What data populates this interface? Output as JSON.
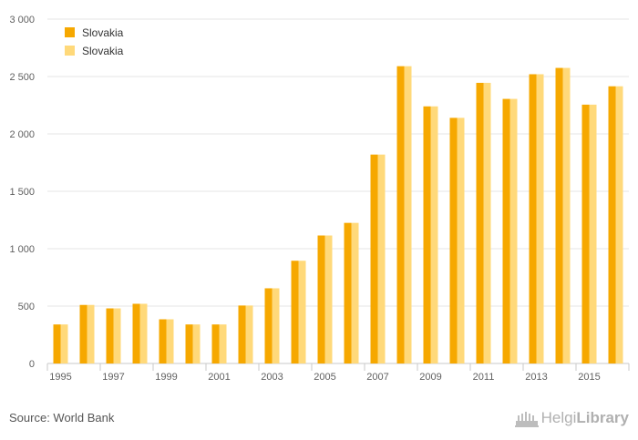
{
  "chart_data": {
    "type": "bar",
    "categories": [
      "1995",
      "1996",
      "1997",
      "1998",
      "1999",
      "2000",
      "2001",
      "2002",
      "2003",
      "2004",
      "2005",
      "2006",
      "2007",
      "2008",
      "2009",
      "2010",
      "2011",
      "2012",
      "2013",
      "2014",
      "2015",
      "2016"
    ],
    "x_tick_labels": [
      "1995",
      "1997",
      "1999",
      "2001",
      "2003",
      "2005",
      "2007",
      "2009",
      "2011",
      "2013",
      "2015"
    ],
    "series": [
      {
        "name": "Slovakia",
        "color": "#f6a800",
        "values": [
          340,
          510,
          480,
          520,
          385,
          340,
          340,
          505,
          655,
          895,
          1115,
          1225,
          1820,
          2590,
          2240,
          2140,
          2445,
          2305,
          2520,
          2575,
          2255,
          2415
        ]
      },
      {
        "name": "Slovakia",
        "color": "#ffd97a",
        "values": [
          340,
          510,
          480,
          520,
          385,
          340,
          340,
          505,
          655,
          895,
          1115,
          1225,
          1820,
          2590,
          2240,
          2140,
          2445,
          2305,
          2520,
          2575,
          2255,
          2415
        ]
      }
    ],
    "ylim": [
      0,
      3000
    ],
    "y_ticks": [
      0,
      500,
      1000,
      1500,
      2000,
      2500,
      3000
    ],
    "y_tick_labels": [
      "0",
      "500",
      "1 000",
      "1 500",
      "2 000",
      "2 500",
      "3 000"
    ],
    "grid": true,
    "legend_position": "top-left"
  },
  "footer": {
    "source": "Source: World Bank",
    "brand_name_regular": "Helgi",
    "brand_name_bold": "Library"
  },
  "colors": {
    "grid": "#e6e6e6",
    "axis": "#c8c8c8",
    "tick_text": "#606060"
  }
}
